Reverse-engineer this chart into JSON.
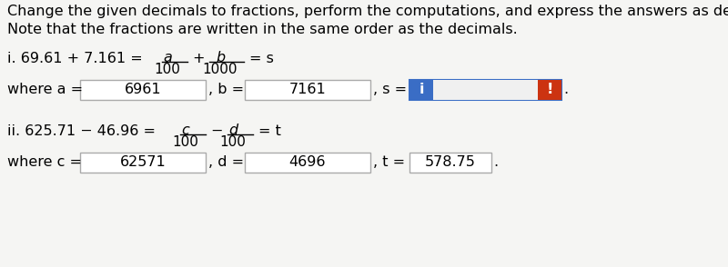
{
  "bg_color": "#f5f5f3",
  "title_line1": "Change the given decimals to fractions, perform the computations, and express the answers as decimals.",
  "title_line2": "Note that the fractions are written in the same order as the decimals.",
  "eq1_a_val": "6961",
  "eq1_b_val": "7161",
  "eq2_c_val": "62571",
  "eq2_d_val": "4696",
  "eq2_t_val": "578.75",
  "box_color": "#ffffff",
  "box_edge": "#aaaaaa",
  "blue_box": "#3a6dc5",
  "red_box": "#cc3311",
  "font_size_title": 11.5,
  "font_size_body": 11.5
}
